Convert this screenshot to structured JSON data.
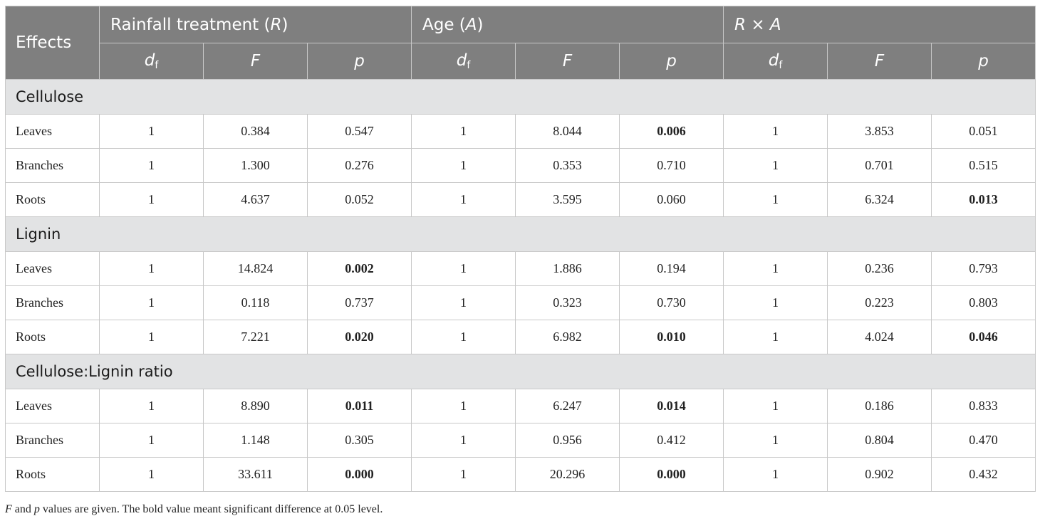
{
  "header": {
    "effects": "Effects",
    "groups": [
      {
        "label": "Rainfall treatment (",
        "sym": "R",
        "tail": ")"
      },
      {
        "label": "Age (",
        "sym": "A",
        "tail": ")"
      },
      {
        "label": "",
        "sym": "R × A",
        "tail": ""
      }
    ],
    "sub_cols": {
      "df_main": "d",
      "df_sub": "f",
      "F": "F",
      "p": "p"
    }
  },
  "sections": [
    {
      "title": "Cellulose",
      "rows": [
        {
          "name": "Leaves",
          "cells": [
            "1",
            "0.384",
            "0.547",
            "1",
            "8.044",
            "0.006",
            "1",
            "3.853",
            "0.051"
          ],
          "bold": [
            false,
            false,
            false,
            false,
            false,
            true,
            false,
            false,
            false
          ]
        },
        {
          "name": "Branches",
          "cells": [
            "1",
            "1.300",
            "0.276",
            "1",
            "0.353",
            "0.710",
            "1",
            "0.701",
            "0.515"
          ],
          "bold": [
            false,
            false,
            false,
            false,
            false,
            false,
            false,
            false,
            false
          ]
        },
        {
          "name": "Roots",
          "cells": [
            "1",
            "4.637",
            "0.052",
            "1",
            "3.595",
            "0.060",
            "1",
            "6.324",
            "0.013"
          ],
          "bold": [
            false,
            false,
            false,
            false,
            false,
            false,
            false,
            false,
            true
          ]
        }
      ]
    },
    {
      "title": "Lignin",
      "rows": [
        {
          "name": "Leaves",
          "cells": [
            "1",
            "14.824",
            "0.002",
            "1",
            "1.886",
            "0.194",
            "1",
            "0.236",
            "0.793"
          ],
          "bold": [
            false,
            false,
            true,
            false,
            false,
            false,
            false,
            false,
            false
          ]
        },
        {
          "name": "Branches",
          "cells": [
            "1",
            "0.118",
            "0.737",
            "1",
            "0.323",
            "0.730",
            "1",
            "0.223",
            "0.803"
          ],
          "bold": [
            false,
            false,
            false,
            false,
            false,
            false,
            false,
            false,
            false
          ]
        },
        {
          "name": "Roots",
          "cells": [
            "1",
            "7.221",
            "0.020",
            "1",
            "6.982",
            "0.010",
            "1",
            "4.024",
            "0.046"
          ],
          "bold": [
            false,
            false,
            true,
            false,
            false,
            true,
            false,
            false,
            true
          ]
        }
      ]
    },
    {
      "title": "Cellulose:Lignin ratio",
      "rows": [
        {
          "name": "Leaves",
          "cells": [
            "1",
            "8.890",
            "0.011",
            "1",
            "6.247",
            "0.014",
            "1",
            "0.186",
            "0.833"
          ],
          "bold": [
            false,
            false,
            true,
            false,
            false,
            true,
            false,
            false,
            false
          ]
        },
        {
          "name": "Branches",
          "cells": [
            "1",
            "1.148",
            "0.305",
            "1",
            "0.956",
            "0.412",
            "1",
            "0.804",
            "0.470"
          ],
          "bold": [
            false,
            false,
            false,
            false,
            false,
            false,
            false,
            false,
            false
          ]
        },
        {
          "name": "Roots",
          "cells": [
            "1",
            "33.611",
            "0.000",
            "1",
            "20.296",
            "0.000",
            "1",
            "0.902",
            "0.432"
          ],
          "bold": [
            false,
            false,
            true,
            false,
            false,
            true,
            false,
            false,
            false
          ]
        }
      ]
    }
  ],
  "footnote": {
    "F": "F",
    "and": " and ",
    "p": "p",
    "rest": " values are given. The bold value meant significant difference at 0.05 level."
  }
}
